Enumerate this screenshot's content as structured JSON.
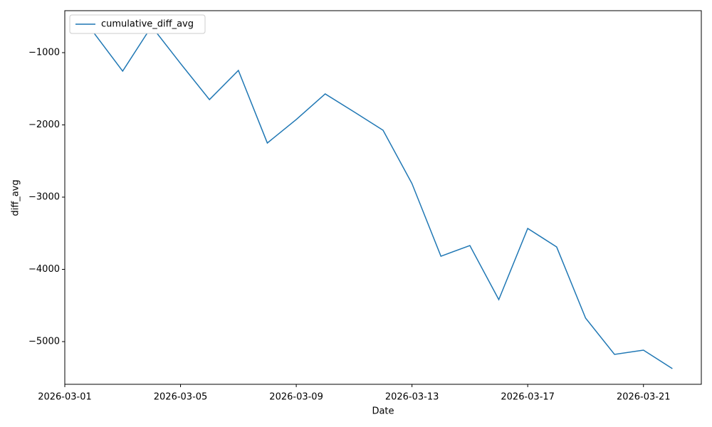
{
  "chart_data": {
    "type": "line",
    "x": [
      "2026-03-02",
      "2026-03-03",
      "2026-03-04",
      "2026-03-05",
      "2026-03-06",
      "2026-03-07",
      "2026-03-08",
      "2026-03-09",
      "2026-03-10",
      "2026-03-11",
      "2026-03-12",
      "2026-03-13",
      "2026-03-14",
      "2026-03-15",
      "2026-03-16",
      "2026-03-17",
      "2026-03-18",
      "2026-03-19",
      "2026-03-20",
      "2026-03-21",
      "2026-03-22"
    ],
    "series": [
      {
        "name": "cumulative_diff_avg",
        "color": "#1f77b4",
        "values": [
          -724,
          -1256,
          -636,
          -1150,
          -1650,
          -1246,
          -2251,
          -1926,
          -1571,
          -1820,
          -2074,
          -2813,
          -3818,
          -3670,
          -4419,
          -3433,
          -3690,
          -4675,
          -5177,
          -5118,
          -5374
        ]
      }
    ],
    "xlabel": "Date",
    "ylabel": "diff_avg",
    "xlim": [
      "2026-03-01",
      "2026-03-23"
    ],
    "xticks": [
      "2026-03-01",
      "2026-03-05",
      "2026-03-09",
      "2026-03-13",
      "2026-03-17",
      "2026-03-21"
    ],
    "ylim": [
      -5591,
      -419
    ],
    "yticks": [
      {
        "value": -5000,
        "label": "−5000"
      },
      {
        "value": -4000,
        "label": "−4000"
      },
      {
        "value": -3000,
        "label": "−3000"
      },
      {
        "value": -2000,
        "label": "−2000"
      },
      {
        "value": -1000,
        "label": "−1000"
      }
    ],
    "legend": "upper left"
  }
}
